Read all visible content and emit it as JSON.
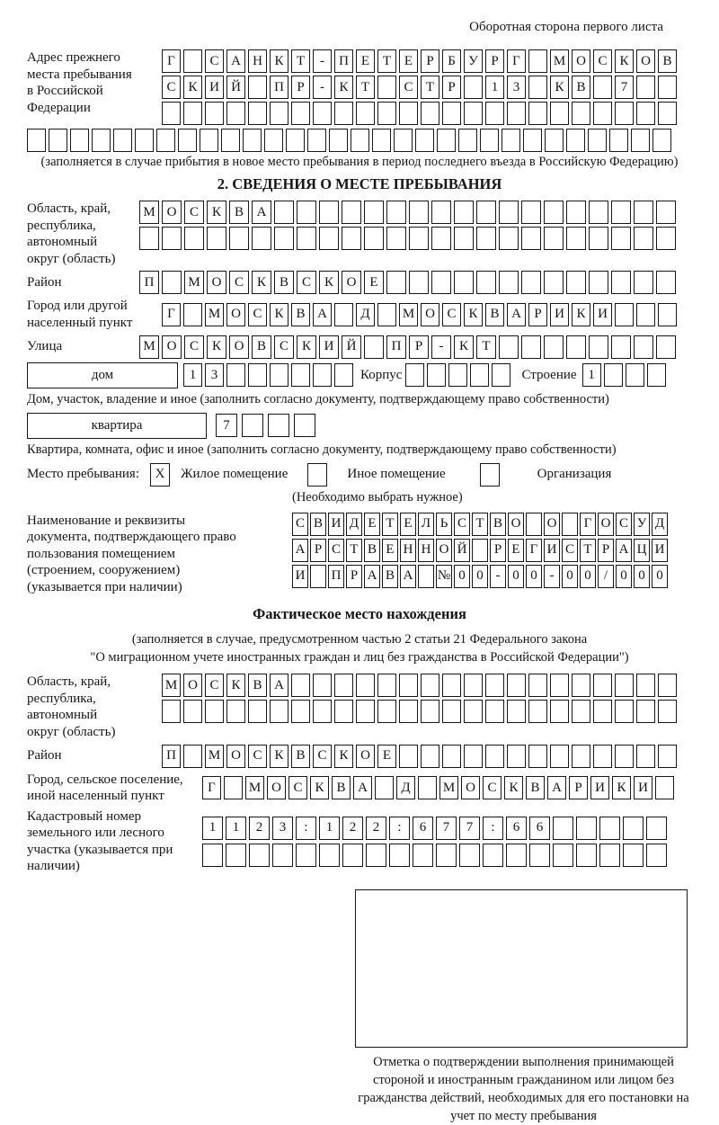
{
  "page": {
    "side_note": "Оборотная сторона первого листа"
  },
  "prev_address": {
    "label": "Адрес прежнего места пребывания в Российской Федерации",
    "rows": [
      {
        "text": "Г САНКТ-ПЕТЕРБУРГ МОСКОВ",
        "len": 24
      },
      {
        "text": "СКИЙ ПР-КТ СТР 13 КВ 7",
        "len": 24
      },
      {
        "text": "",
        "len": 24
      }
    ],
    "full_row": {
      "text": "",
      "len": 30
    },
    "footnote": "(заполняется в случае прибытия в новое место пребывания в период последнего въезда в Российскую Федерацию)"
  },
  "section2": {
    "title": "2. СВЕДЕНИЯ О МЕСТЕ ПРЕБЫВАНИЯ",
    "region": {
      "label": "Область, край, республика, автономный округ (область)",
      "rows": [
        {
          "text": "МОСКВА",
          "len": 24
        },
        {
          "text": "",
          "len": 24
        }
      ]
    },
    "district": {
      "label": "Район",
      "row": {
        "text": "П МОСКВСКОЕ",
        "len": 24
      }
    },
    "city": {
      "label": "Город или другой населенный пункт",
      "row": {
        "text": "Г МОСКВА Д МОСКВАРИКИ",
        "len": 24
      }
    },
    "street": {
      "label": "Улица",
      "row": {
        "text": "МОСКОВСКИЙ ПР-КТ",
        "len": 24
      }
    },
    "house": {
      "box_label": "дом",
      "cells": {
        "text": "13",
        "len": 8
      },
      "korpus_label": "Корпус",
      "korpus_cells": {
        "text": "",
        "len": 5
      },
      "stroenie_label": "Строение",
      "stroenie_cells": {
        "text": "1",
        "len": 4
      },
      "footnote": "Дом, участок, владение и иное (заполнить согласно документу, подтверждающему право собственности)"
    },
    "apartment": {
      "box_label": "квартира",
      "cells": {
        "text": "7",
        "len": 4
      },
      "footnote": "Квартира, комната, офис и иное (заполнить согласно документу, подтверждающему право собственности)"
    },
    "residence_type": {
      "label": "Место пребывания:",
      "checked_mark": "X",
      "option1": "Жилое помещение",
      "option1_mark": "X",
      "option2": "Иное помещение",
      "option2_mark": "",
      "option3": "Организация",
      "option3_mark": "",
      "hint": "(Необходимо выбрать нужное)"
    },
    "document": {
      "label": "Наименование и реквизиты документа, подтверждающего право пользования помещением (строением, сооружением) (указывается при наличии)",
      "rows": [
        {
          "text": "СВИДЕТЕЛЬСТВО О ГОСУД",
          "len": 21
        },
        {
          "text": "АРСТВЕННОЙ РЕГИСТРАЦИ",
          "len": 21
        },
        {
          "text": "И ПРАВА №00-00-00/000",
          "len": 21
        }
      ],
      "full_value": "СВИДЕТЕЛЬСТВО О ГОСУДАРСТВЕННОЙ РЕГИСТРАЦИИ ПРАВА № 00-00-00/000"
    }
  },
  "actual_location": {
    "title": "Фактическое место нахождения",
    "note_line1": "(заполняется в случае, предусмотренном частью 2 статьи 21 Федерального закона",
    "note_line2": "\"О миграционном учете иностранных граждан и лиц без гражданства в Российской Федерации\")",
    "region": {
      "label": "Область, край, республика, автономный округ (область)",
      "rows": [
        {
          "text": "МОСКВА",
          "len": 24
        },
        {
          "text": "",
          "len": 24
        }
      ]
    },
    "district": {
      "label": "Район",
      "row": {
        "text": "П МОСКВСКОЕ",
        "len": 24
      }
    },
    "city": {
      "label": "Город, сельское поселение, иной населенный пункт",
      "row": {
        "text": "Г МОСКВА Д МОСКВАРИКИ",
        "len": 22
      }
    },
    "cadastral": {
      "label": "Кадастровый номер земельного или лесного участка (указывается при наличии)",
      "rows": [
        {
          "text": "1123:122:677:66",
          "len": 20
        },
        {
          "text": "",
          "len": 20
        }
      ]
    },
    "stamp_caption": "Отметка о подтверждении выполнения принимающей стороной и иностранным гражданином или лицом без гражданства действий, необходимых для его постановки на учет по месту пребывания"
  }
}
